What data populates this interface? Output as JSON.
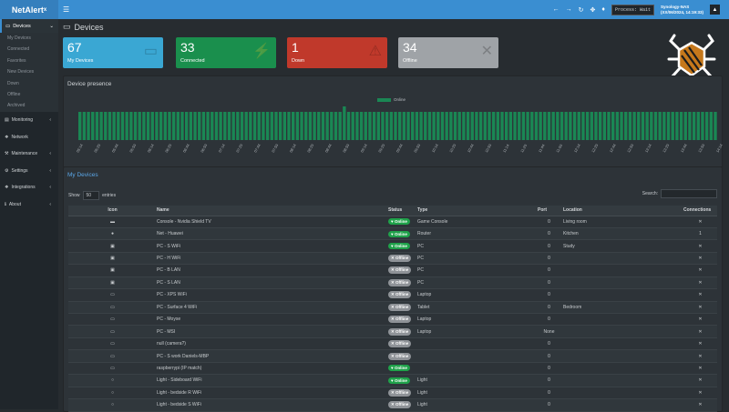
{
  "app": {
    "logo": "NetAlertˣ"
  },
  "topbar": {
    "process": "Process: Wait",
    "server_name": "Synology-NAS",
    "server_time": "(XX/06/2024, 14:19:33)"
  },
  "sidebar": {
    "devices_label": "Devices",
    "subitems": [
      "My Devices",
      "Connected",
      "Favorites",
      "New Devices",
      "Down",
      "Offline",
      "Archived"
    ],
    "menu": [
      {
        "label": "Monitoring",
        "icon": "monitoring-icon",
        "chev": "‹"
      },
      {
        "label": "Network",
        "icon": "network-icon",
        "chev": ""
      },
      {
        "label": "Maintenance",
        "icon": "maintenance-icon",
        "chev": "‹"
      },
      {
        "label": "Settings",
        "icon": "gear-icon",
        "chev": "‹"
      },
      {
        "label": "Integrations",
        "icon": "integrations-icon",
        "chev": "‹"
      },
      {
        "label": "About",
        "icon": "info-icon",
        "chev": "‹"
      }
    ]
  },
  "page": {
    "title": "Devices"
  },
  "cards": [
    {
      "num": "67",
      "label": "My Devices",
      "color": "#3aa7d3",
      "icon": "laptop-icon"
    },
    {
      "num": "33",
      "label": "Connected",
      "color": "#1a8f4d",
      "icon": "plug-icon"
    },
    {
      "num": "1",
      "label": "Down",
      "color": "#c0392b",
      "icon": "warning-icon"
    },
    {
      "num": "34",
      "label": "Offline",
      "color": "#9fa3a7",
      "icon": "x-icon"
    }
  ],
  "presence": {
    "title": "Device presence",
    "legend": "Online"
  },
  "chart_data": {
    "type": "bar",
    "series": [
      {
        "name": "Online",
        "color": "#1a8754"
      }
    ],
    "bar_count": 150,
    "x_start": "05:14",
    "x_end": "14:14",
    "x_labels": [
      "05:14",
      "05:29",
      "05:44",
      "05:59",
      "06:14",
      "06:29",
      "06:44",
      "06:59",
      "07:14",
      "07:29",
      "07:44",
      "07:59",
      "08:14",
      "08:29",
      "08:44",
      "08:59",
      "09:14",
      "09:29",
      "09:44",
      "09:59",
      "10:14",
      "10:29",
      "10:44",
      "10:59",
      "11:14",
      "11:29",
      "11:44",
      "11:59",
      "12:14",
      "12:29",
      "12:44",
      "12:59",
      "13:14",
      "13:29",
      "13:44",
      "13:59",
      "14:14"
    ]
  },
  "devices": {
    "title": "My Devices",
    "show_label": "Show",
    "show_value": "50",
    "entries_label": "entries",
    "search_label": "Search:",
    "columns": [
      "Icon",
      "Name",
      "Status",
      "Type",
      "Port",
      "Location",
      "Connections"
    ],
    "rows": [
      {
        "icon": "▬",
        "name": "Console - Nvidia Shield TV",
        "status": "Online",
        "type": "Game Console",
        "port": "0",
        "location": "Living room",
        "conn": "✕"
      },
      {
        "icon": "●",
        "name": "Net - Huawei",
        "status": "Online",
        "type": "Router",
        "port": "0",
        "location": "Kitchen",
        "conn": "1"
      },
      {
        "icon": "▣",
        "name": "PC - S WiFi",
        "status": "Online",
        "type": "PC",
        "port": "0",
        "location": "Study",
        "conn": "✕"
      },
      {
        "icon": "▣",
        "name": "PC - H WiFi",
        "status": "Offline",
        "type": "PC",
        "port": "0",
        "location": "",
        "conn": "✕"
      },
      {
        "icon": "▣",
        "name": "PC - B LAN",
        "status": "Offline",
        "type": "PC",
        "port": "0",
        "location": "",
        "conn": "✕"
      },
      {
        "icon": "▣",
        "name": "PC - S LAN",
        "status": "Offline",
        "type": "PC",
        "port": "0",
        "location": "",
        "conn": "✕"
      },
      {
        "icon": "▭",
        "name": "PC - XPS WiFi",
        "status": "Offline",
        "type": "Laptop",
        "port": "0",
        "location": "",
        "conn": "✕"
      },
      {
        "icon": "▭",
        "name": "PC - Surface 4 WiFi",
        "status": "Offline",
        "type": "Tablet",
        "port": "0",
        "location": "Bedroom",
        "conn": "✕"
      },
      {
        "icon": "▭",
        "name": "PC - Moyse",
        "status": "Offline",
        "type": "Laptop",
        "port": "0",
        "location": "",
        "conn": "✕"
      },
      {
        "icon": "▭",
        "name": "PC - MSI",
        "status": "Offline",
        "type": "Laptop",
        "port": "None",
        "location": "",
        "conn": "✕"
      },
      {
        "icon": "▭",
        "name": "null (camera?)",
        "status": "Offline",
        "type": "",
        "port": "0",
        "location": "",
        "conn": "✕"
      },
      {
        "icon": "▭",
        "name": "PC - S work Daniels-MBP",
        "status": "Offline",
        "type": "",
        "port": "0",
        "location": "",
        "conn": "✕"
      },
      {
        "icon": "▭",
        "name": "raspberrypi (IP match)",
        "status": "Online",
        "type": "",
        "port": "0",
        "location": "",
        "conn": "✕"
      },
      {
        "icon": "○",
        "name": "Light - Sideboard WiFi",
        "status": "Online",
        "type": "Light",
        "port": "0",
        "location": "",
        "conn": "✕"
      },
      {
        "icon": "○",
        "name": "Light - bedside R WiFi",
        "status": "Offline",
        "type": "Light",
        "port": "0",
        "location": "",
        "conn": "✕"
      },
      {
        "icon": "○",
        "name": "Light - bedside S WiFi",
        "status": "Offline",
        "type": "Light",
        "port": "0",
        "location": "",
        "conn": "✕"
      }
    ]
  }
}
